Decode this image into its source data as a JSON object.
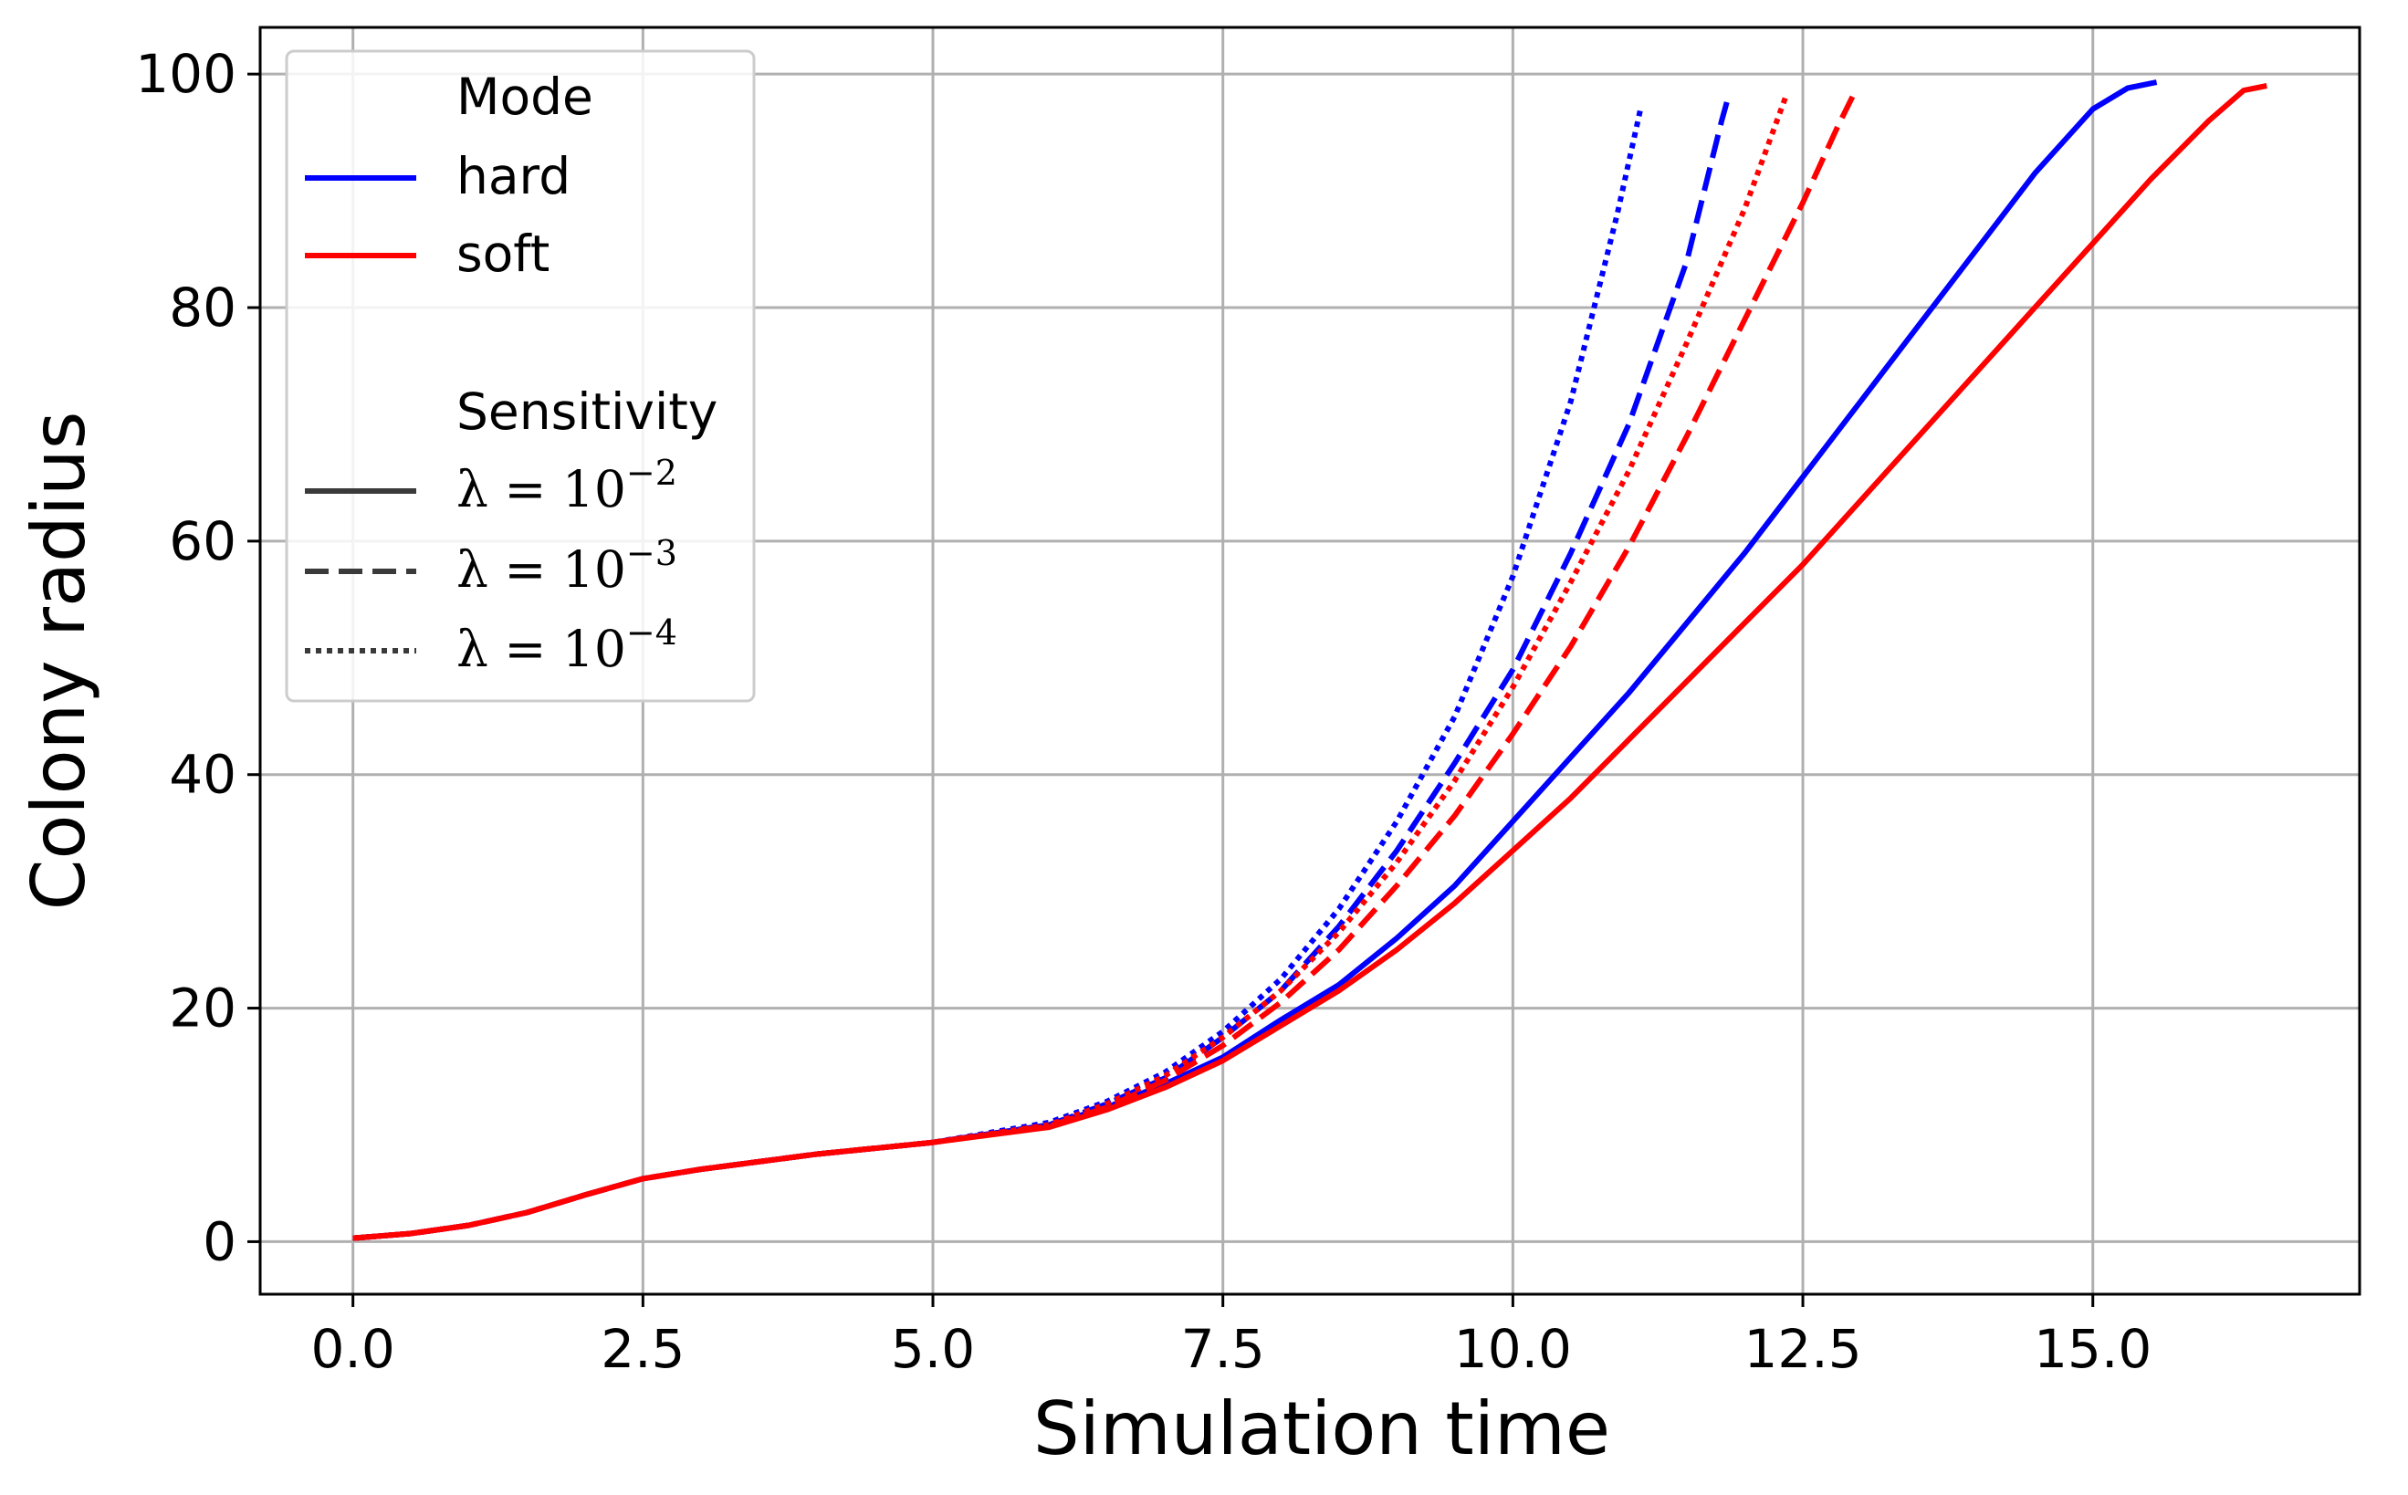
{
  "chart_data": {
    "type": "line",
    "xlabel": "Simulation time",
    "ylabel": "Colony radius",
    "xlim": [
      -0.8,
      17.3
    ],
    "ylim": [
      -4.5,
      104
    ],
    "xticks": [
      0.0,
      2.5,
      5.0,
      7.5,
      10.0,
      12.5,
      15.0
    ],
    "xtick_labels": [
      "0.0",
      "2.5",
      "5.0",
      "7.5",
      "10.0",
      "12.5",
      "15.0"
    ],
    "yticks": [
      0,
      20,
      40,
      60,
      80,
      100
    ],
    "ytick_labels": [
      "0",
      "20",
      "40",
      "60",
      "80",
      "100"
    ],
    "grid": true,
    "legend": {
      "placement": "top-left",
      "mode_title": "Mode",
      "modes": [
        {
          "label": "hard",
          "color": "#0000ff"
        },
        {
          "label": "soft",
          "color": "#ff0000"
        }
      ],
      "sensitivity_title": "Sensitivity",
      "sensitivities": [
        {
          "prefix": "λ = 10",
          "exponent": "−2",
          "style": "solid"
        },
        {
          "prefix": "λ = 10",
          "exponent": "−3",
          "style": "dashed"
        },
        {
          "prefix": "λ = 10",
          "exponent": "−4",
          "style": "dotted"
        }
      ]
    },
    "series": [
      {
        "mode": "hard",
        "style": "solid",
        "color": "#0000ff",
        "points": [
          [
            0,
            0.3
          ],
          [
            0.5,
            0.7
          ],
          [
            1.0,
            1.4
          ],
          [
            1.5,
            2.5
          ],
          [
            2.0,
            4.0
          ],
          [
            2.5,
            5.4
          ],
          [
            3.0,
            6.2
          ],
          [
            4.0,
            7.5
          ],
          [
            5.0,
            8.5
          ],
          [
            6.0,
            10.0
          ],
          [
            6.5,
            11.5
          ],
          [
            7.0,
            13.5
          ],
          [
            7.5,
            15.8
          ],
          [
            8.0,
            19.0
          ],
          [
            8.5,
            22.0
          ],
          [
            9.0,
            26.0
          ],
          [
            9.5,
            30.5
          ],
          [
            10.0,
            36.0
          ],
          [
            10.5,
            41.5
          ],
          [
            11.0,
            47.0
          ],
          [
            11.5,
            53.0
          ],
          [
            12.0,
            59.0
          ],
          [
            12.5,
            65.5
          ],
          [
            13.0,
            72.0
          ],
          [
            13.5,
            78.5
          ],
          [
            14.0,
            85.0
          ],
          [
            14.5,
            91.5
          ],
          [
            15.0,
            97.0
          ],
          [
            15.3,
            98.8
          ],
          [
            15.55,
            99.3
          ]
        ]
      },
      {
        "mode": "hard",
        "style": "dashed",
        "color": "#0000ff",
        "points": [
          [
            0,
            0.3
          ],
          [
            0.5,
            0.7
          ],
          [
            1.0,
            1.4
          ],
          [
            1.5,
            2.5
          ],
          [
            2.0,
            4.0
          ],
          [
            2.5,
            5.4
          ],
          [
            3.0,
            6.2
          ],
          [
            4.0,
            7.5
          ],
          [
            5.0,
            8.5
          ],
          [
            6.0,
            10.0
          ],
          [
            6.5,
            11.8
          ],
          [
            7.0,
            14.0
          ],
          [
            7.5,
            17.5
          ],
          [
            8.0,
            21.5
          ],
          [
            8.5,
            27.0
          ],
          [
            9.0,
            33.5
          ],
          [
            9.5,
            41.0
          ],
          [
            10.0,
            49.0
          ],
          [
            10.5,
            59.0
          ],
          [
            11.0,
            70.0
          ],
          [
            11.5,
            84.0
          ],
          [
            11.8,
            96.0
          ],
          [
            11.85,
            97.8
          ]
        ]
      },
      {
        "mode": "hard",
        "style": "dotted",
        "color": "#0000ff",
        "points": [
          [
            0,
            0.3
          ],
          [
            0.5,
            0.7
          ],
          [
            1.0,
            1.4
          ],
          [
            1.5,
            2.5
          ],
          [
            2.0,
            4.0
          ],
          [
            2.5,
            5.4
          ],
          [
            3.0,
            6.2
          ],
          [
            4.0,
            7.5
          ],
          [
            5.0,
            8.5
          ],
          [
            6.0,
            10.2
          ],
          [
            6.5,
            12.0
          ],
          [
            7.0,
            14.5
          ],
          [
            7.5,
            18.0
          ],
          [
            8.0,
            22.5
          ],
          [
            8.5,
            28.5
          ],
          [
            9.0,
            36.0
          ],
          [
            9.5,
            45.0
          ],
          [
            10.0,
            57.0
          ],
          [
            10.5,
            72.0
          ],
          [
            10.9,
            88.0
          ],
          [
            11.1,
            97.0
          ]
        ]
      },
      {
        "mode": "soft",
        "style": "solid",
        "color": "#ff0000",
        "points": [
          [
            0,
            0.3
          ],
          [
            0.5,
            0.7
          ],
          [
            1.0,
            1.4
          ],
          [
            1.5,
            2.5
          ],
          [
            2.0,
            4.0
          ],
          [
            2.5,
            5.4
          ],
          [
            3.0,
            6.2
          ],
          [
            4.0,
            7.5
          ],
          [
            5.0,
            8.5
          ],
          [
            6.0,
            9.8
          ],
          [
            6.5,
            11.3
          ],
          [
            7.0,
            13.2
          ],
          [
            7.5,
            15.5
          ],
          [
            8.0,
            18.5
          ],
          [
            8.5,
            21.5
          ],
          [
            9.0,
            25.0
          ],
          [
            9.5,
            29.0
          ],
          [
            10.0,
            33.5
          ],
          [
            10.5,
            38.0
          ],
          [
            11.0,
            43.0
          ],
          [
            11.5,
            48.0
          ],
          [
            12.0,
            53.0
          ],
          [
            12.5,
            58.0
          ],
          [
            13.0,
            63.5
          ],
          [
            13.5,
            69.0
          ],
          [
            14.0,
            74.5
          ],
          [
            14.5,
            80.0
          ],
          [
            15.0,
            85.5
          ],
          [
            15.5,
            91.0
          ],
          [
            16.0,
            96.0
          ],
          [
            16.3,
            98.6
          ],
          [
            16.5,
            99.0
          ]
        ]
      },
      {
        "mode": "soft",
        "style": "dashed",
        "color": "#ff0000",
        "points": [
          [
            0,
            0.3
          ],
          [
            0.5,
            0.7
          ],
          [
            1.0,
            1.4
          ],
          [
            1.5,
            2.5
          ],
          [
            2.0,
            4.0
          ],
          [
            2.5,
            5.4
          ],
          [
            3.0,
            6.2
          ],
          [
            4.0,
            7.5
          ],
          [
            5.0,
            8.5
          ],
          [
            6.0,
            9.9
          ],
          [
            6.5,
            11.5
          ],
          [
            7.0,
            13.8
          ],
          [
            7.5,
            16.8
          ],
          [
            8.0,
            20.5
          ],
          [
            8.5,
            25.0
          ],
          [
            9.0,
            30.5
          ],
          [
            9.5,
            36.5
          ],
          [
            10.0,
            43.5
          ],
          [
            10.5,
            51.0
          ],
          [
            11.0,
            59.5
          ],
          [
            11.5,
            69.0
          ],
          [
            12.0,
            79.0
          ],
          [
            12.5,
            89.0
          ],
          [
            12.8,
            95.5
          ],
          [
            12.95,
            98.5
          ]
        ]
      },
      {
        "mode": "soft",
        "style": "dotted",
        "color": "#ff0000",
        "points": [
          [
            0,
            0.3
          ],
          [
            0.5,
            0.7
          ],
          [
            1.0,
            1.4
          ],
          [
            1.5,
            2.5
          ],
          [
            2.0,
            4.0
          ],
          [
            2.5,
            5.4
          ],
          [
            3.0,
            6.2
          ],
          [
            4.0,
            7.5
          ],
          [
            5.0,
            8.5
          ],
          [
            6.0,
            10.0
          ],
          [
            6.5,
            11.8
          ],
          [
            7.0,
            14.2
          ],
          [
            7.5,
            17.5
          ],
          [
            8.0,
            21.5
          ],
          [
            8.5,
            26.5
          ],
          [
            9.0,
            32.5
          ],
          [
            9.5,
            39.5
          ],
          [
            10.0,
            47.5
          ],
          [
            10.5,
            56.5
          ],
          [
            11.0,
            66.0
          ],
          [
            11.5,
            77.0
          ],
          [
            12.0,
            88.5
          ],
          [
            12.35,
            98.0
          ]
        ]
      }
    ]
  }
}
